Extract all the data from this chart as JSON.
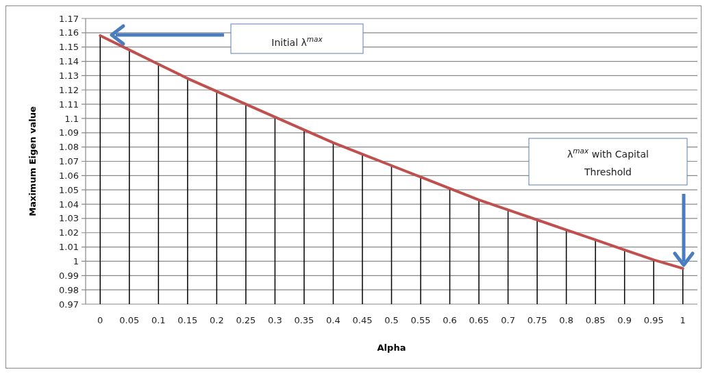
{
  "chart_data": {
    "type": "line",
    "xlabel": "Alpha",
    "ylabel": "Maximum Eigen value",
    "categories": [
      "0",
      "0.05",
      "0.1",
      "0.15",
      "0.2",
      "0.25",
      "0.3",
      "0.35",
      "0.4",
      "0.45",
      "0.5",
      "0.55",
      "0.6",
      "0.65",
      "0.7",
      "0.75",
      "0.8",
      "0.85",
      "0.9",
      "0.95",
      "1"
    ],
    "series": [
      {
        "type": "bar",
        "color": "#000000",
        "values": [
          1.158,
          1.148,
          1.138,
          1.128,
          1.119,
          1.11,
          1.101,
          1.092,
          1.083,
          1.075,
          1.067,
          1.059,
          1.051,
          1.043,
          1.036,
          1.029,
          1.022,
          1.015,
          1.008,
          1.001,
          0.995
        ]
      },
      {
        "color": "#c0504d",
        "values": [
          1.158,
          1.148,
          1.138,
          1.128,
          1.119,
          1.11,
          1.101,
          1.092,
          1.083,
          1.075,
          1.067,
          1.059,
          1.051,
          1.043,
          1.036,
          1.029,
          1.022,
          1.015,
          1.008,
          1.001,
          0.995
        ]
      }
    ],
    "ylim": [
      0.97,
      1.17
    ],
    "yticks": [
      0.97,
      0.98,
      0.99,
      1,
      1.01,
      1.02,
      1.03,
      1.04,
      1.05,
      1.06,
      1.07,
      1.08,
      1.09,
      1.1,
      1.11,
      1.12,
      1.13,
      1.14,
      1.15,
      1.16,
      1.17
    ],
    "grid": "y",
    "marker": "none",
    "line_style": "solid",
    "annotations": [
      "Initial λ$^{max}$",
      "λ$^{max}$ with Capital Threshold"
    ]
  }
}
